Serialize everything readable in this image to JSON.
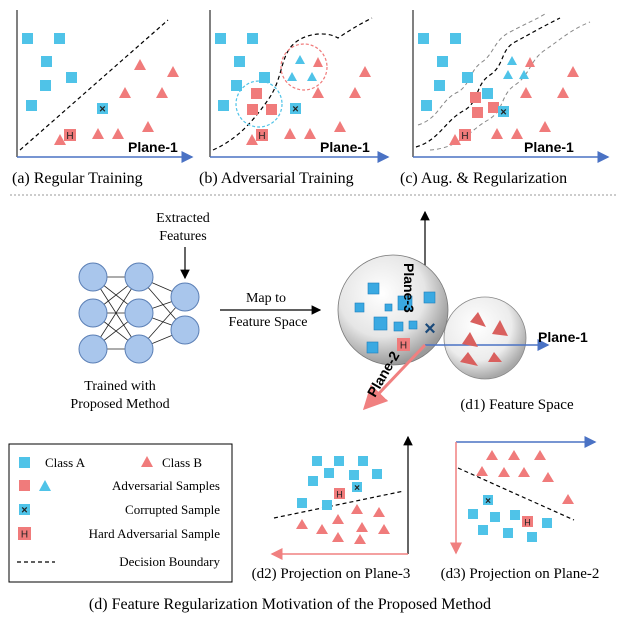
{
  "panels": {
    "a": {
      "caption": "(a) Regular Training",
      "axis_label": "Plane-1"
    },
    "b": {
      "caption": "(b) Adversarial Training",
      "axis_label": "Plane-1"
    },
    "c": {
      "caption": "(c) Aug. & Regularization",
      "axis_label": "Plane-1"
    }
  },
  "network": {
    "extracted_line1": "Extracted",
    "extracted_line2": "Features",
    "trained_line1": "Trained with",
    "trained_line2": "Proposed Method",
    "map_line1": "Map to",
    "map_line2": "Feature Space"
  },
  "feature_space": {
    "plane1": "Plane-1",
    "plane2": "Plane-2",
    "plane3": "Plane-3",
    "caption": "(d1) Feature Space"
  },
  "legend": {
    "class_a": "Class A",
    "class_b": "Class B",
    "adversarial": "Adversarial Samples",
    "corrupted": "Corrupted Sample",
    "hard_adv": "Hard Adversarial Sample",
    "boundary": "Decision Boundary",
    "h_letter": "H",
    "x_letter": "×"
  },
  "projections": {
    "d2": "(d2) Projection on Plane-3",
    "d3": "(d3) Projection on Plane-2"
  },
  "main_caption": "(d) Feature Regularization Motivation of the Proposed Method",
  "colors": {
    "class_a": "#4fc3e8",
    "class_b": "#f07b7b",
    "adv_a": "#4fc3e8",
    "adv_b": "#f07b7b",
    "axis_blue": "#4a72c4",
    "axis_pink": "#f08080"
  }
}
